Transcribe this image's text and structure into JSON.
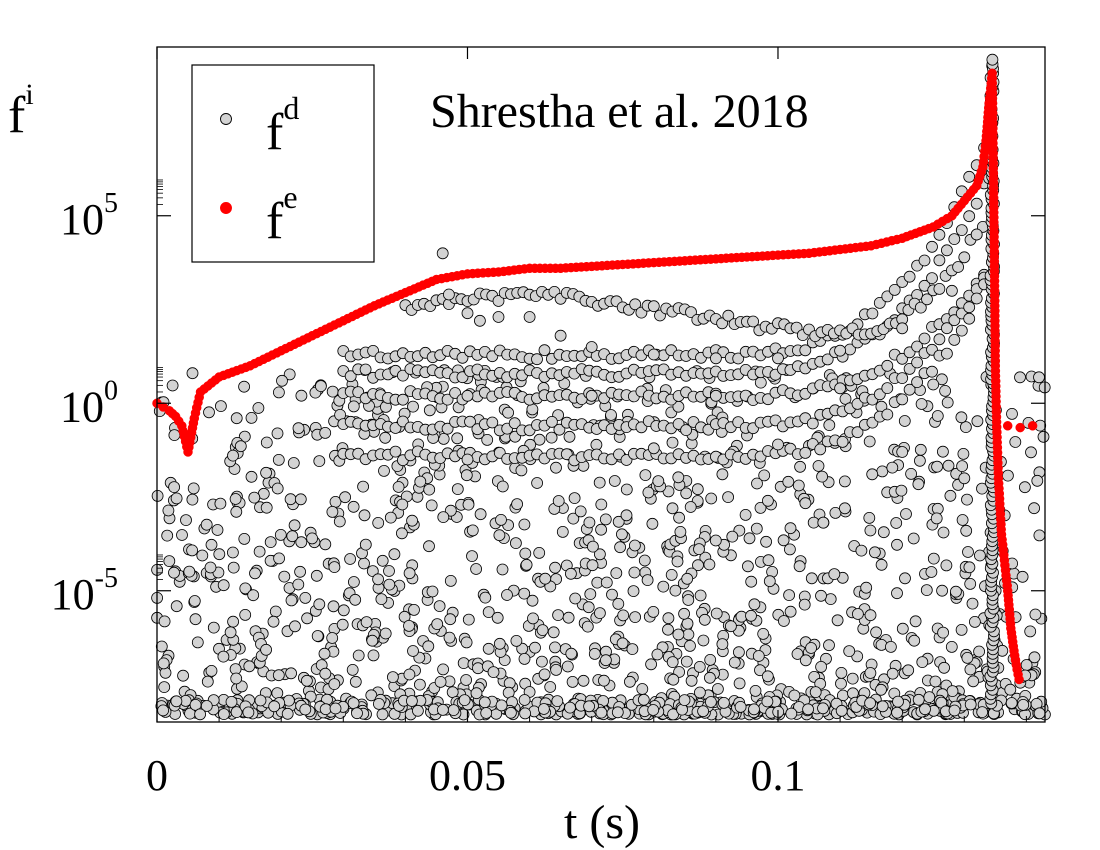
{
  "chart_data": {
    "type": "scatter",
    "title": "",
    "annotation": "Shrestha et al. 2018",
    "xlabel": "t (s)",
    "ylabel": {
      "base": "f",
      "sup": "i"
    },
    "xlim": [
      0,
      0.143
    ],
    "ylim_log10": [
      -8.5,
      9.5
    ],
    "x_ticks": [
      {
        "value": 0,
        "label": "0"
      },
      {
        "value": 0.05,
        "label": "0.05"
      },
      {
        "value": 0.1,
        "label": "0.1"
      }
    ],
    "y_ticks": [
      {
        "exp": 5,
        "base": "10",
        "sup": "5"
      },
      {
        "exp": 0,
        "base": "10",
        "sup": "0"
      },
      {
        "exp": -5,
        "base": "10",
        "sup": "-5"
      }
    ],
    "legend": {
      "position": "top-left",
      "entries": [
        {
          "base": "f",
          "sup": "d",
          "series": "fd"
        },
        {
          "base": "f",
          "sup": "e",
          "series": "fe"
        }
      ]
    },
    "series": [
      {
        "name": "fd",
        "marker": "open-circle",
        "fill": "#d3d3d3",
        "stroke": "#000000",
        "description": "dense cloud of gray points spread between 1e-8 and 1e1 over 0-0.143 s, converging to a spike near t=0.134 s",
        "points_log10": [
          [
            0.046,
            4.0
          ],
          [
            0.047,
            2.9
          ],
          [
            0.05,
            2.4
          ],
          [
            0.052,
            2.2
          ],
          [
            0.055,
            2.3
          ],
          [
            0.06,
            2.3
          ],
          [
            0.065,
            1.8
          ],
          [
            0.07,
            1.5
          ],
          [
            0.08,
            1.3
          ],
          [
            0.09,
            1.2
          ],
          [
            0.1,
            1.2
          ],
          [
            0.11,
            1.4
          ],
          [
            0.12,
            2.0
          ],
          [
            0.128,
            3.0
          ],
          [
            0.132,
            4.5
          ],
          [
            0.134,
            6.0
          ],
          [
            0.1345,
            9.0
          ],
          [
            0.05,
            0.2
          ],
          [
            0.07,
            0.2
          ],
          [
            0.09,
            0.2
          ],
          [
            0.11,
            0.4
          ],
          [
            0.125,
            0.5
          ],
          [
            0.05,
            -1.5
          ],
          [
            0.08,
            -1.2
          ],
          [
            0.1,
            -1.1
          ],
          [
            0.12,
            -1.3
          ],
          [
            0.13,
            -2.0
          ]
        ]
      },
      {
        "name": "fe",
        "marker": "filled-circle",
        "fill": "#ff0000",
        "stroke": "#ff0000",
        "points_log10": [
          [
            0.0,
            0.0
          ],
          [
            0.001,
            -0.1
          ],
          [
            0.002,
            -0.2
          ],
          [
            0.003,
            -0.35
          ],
          [
            0.004,
            -0.6
          ],
          [
            0.005,
            -1.3
          ],
          [
            0.006,
            -0.4
          ],
          [
            0.007,
            0.3
          ],
          [
            0.01,
            0.7
          ],
          [
            0.015,
            1.0
          ],
          [
            0.02,
            1.4
          ],
          [
            0.025,
            1.8
          ],
          [
            0.03,
            2.2
          ],
          [
            0.035,
            2.6
          ],
          [
            0.04,
            2.95
          ],
          [
            0.045,
            3.3
          ],
          [
            0.05,
            3.45
          ],
          [
            0.055,
            3.5
          ],
          [
            0.06,
            3.6
          ],
          [
            0.065,
            3.6
          ],
          [
            0.07,
            3.65
          ],
          [
            0.075,
            3.7
          ],
          [
            0.08,
            3.75
          ],
          [
            0.085,
            3.8
          ],
          [
            0.09,
            3.85
          ],
          [
            0.095,
            3.9
          ],
          [
            0.1,
            3.95
          ],
          [
            0.105,
            4.0
          ],
          [
            0.11,
            4.1
          ],
          [
            0.115,
            4.2
          ],
          [
            0.12,
            4.4
          ],
          [
            0.125,
            4.7
          ],
          [
            0.128,
            5.0
          ],
          [
            0.13,
            5.4
          ],
          [
            0.132,
            5.8
          ],
          [
            0.133,
            6.3
          ],
          [
            0.1335,
            7.0
          ],
          [
            0.134,
            8.0
          ],
          [
            0.1345,
            8.8
          ],
          [
            0.1347,
            6.0
          ],
          [
            0.1349,
            3.0
          ],
          [
            0.135,
            1.0
          ],
          [
            0.1352,
            -0.5
          ],
          [
            0.1355,
            -2.0
          ],
          [
            0.136,
            -3.5
          ],
          [
            0.137,
            -5.0
          ],
          [
            0.1375,
            -6.0
          ],
          [
            0.138,
            -6.6
          ],
          [
            0.1385,
            -7.1
          ],
          [
            0.139,
            -7.5
          ],
          [
            0.137,
            -0.6
          ],
          [
            0.139,
            -0.65
          ],
          [
            0.141,
            -0.6
          ]
        ]
      }
    ]
  }
}
